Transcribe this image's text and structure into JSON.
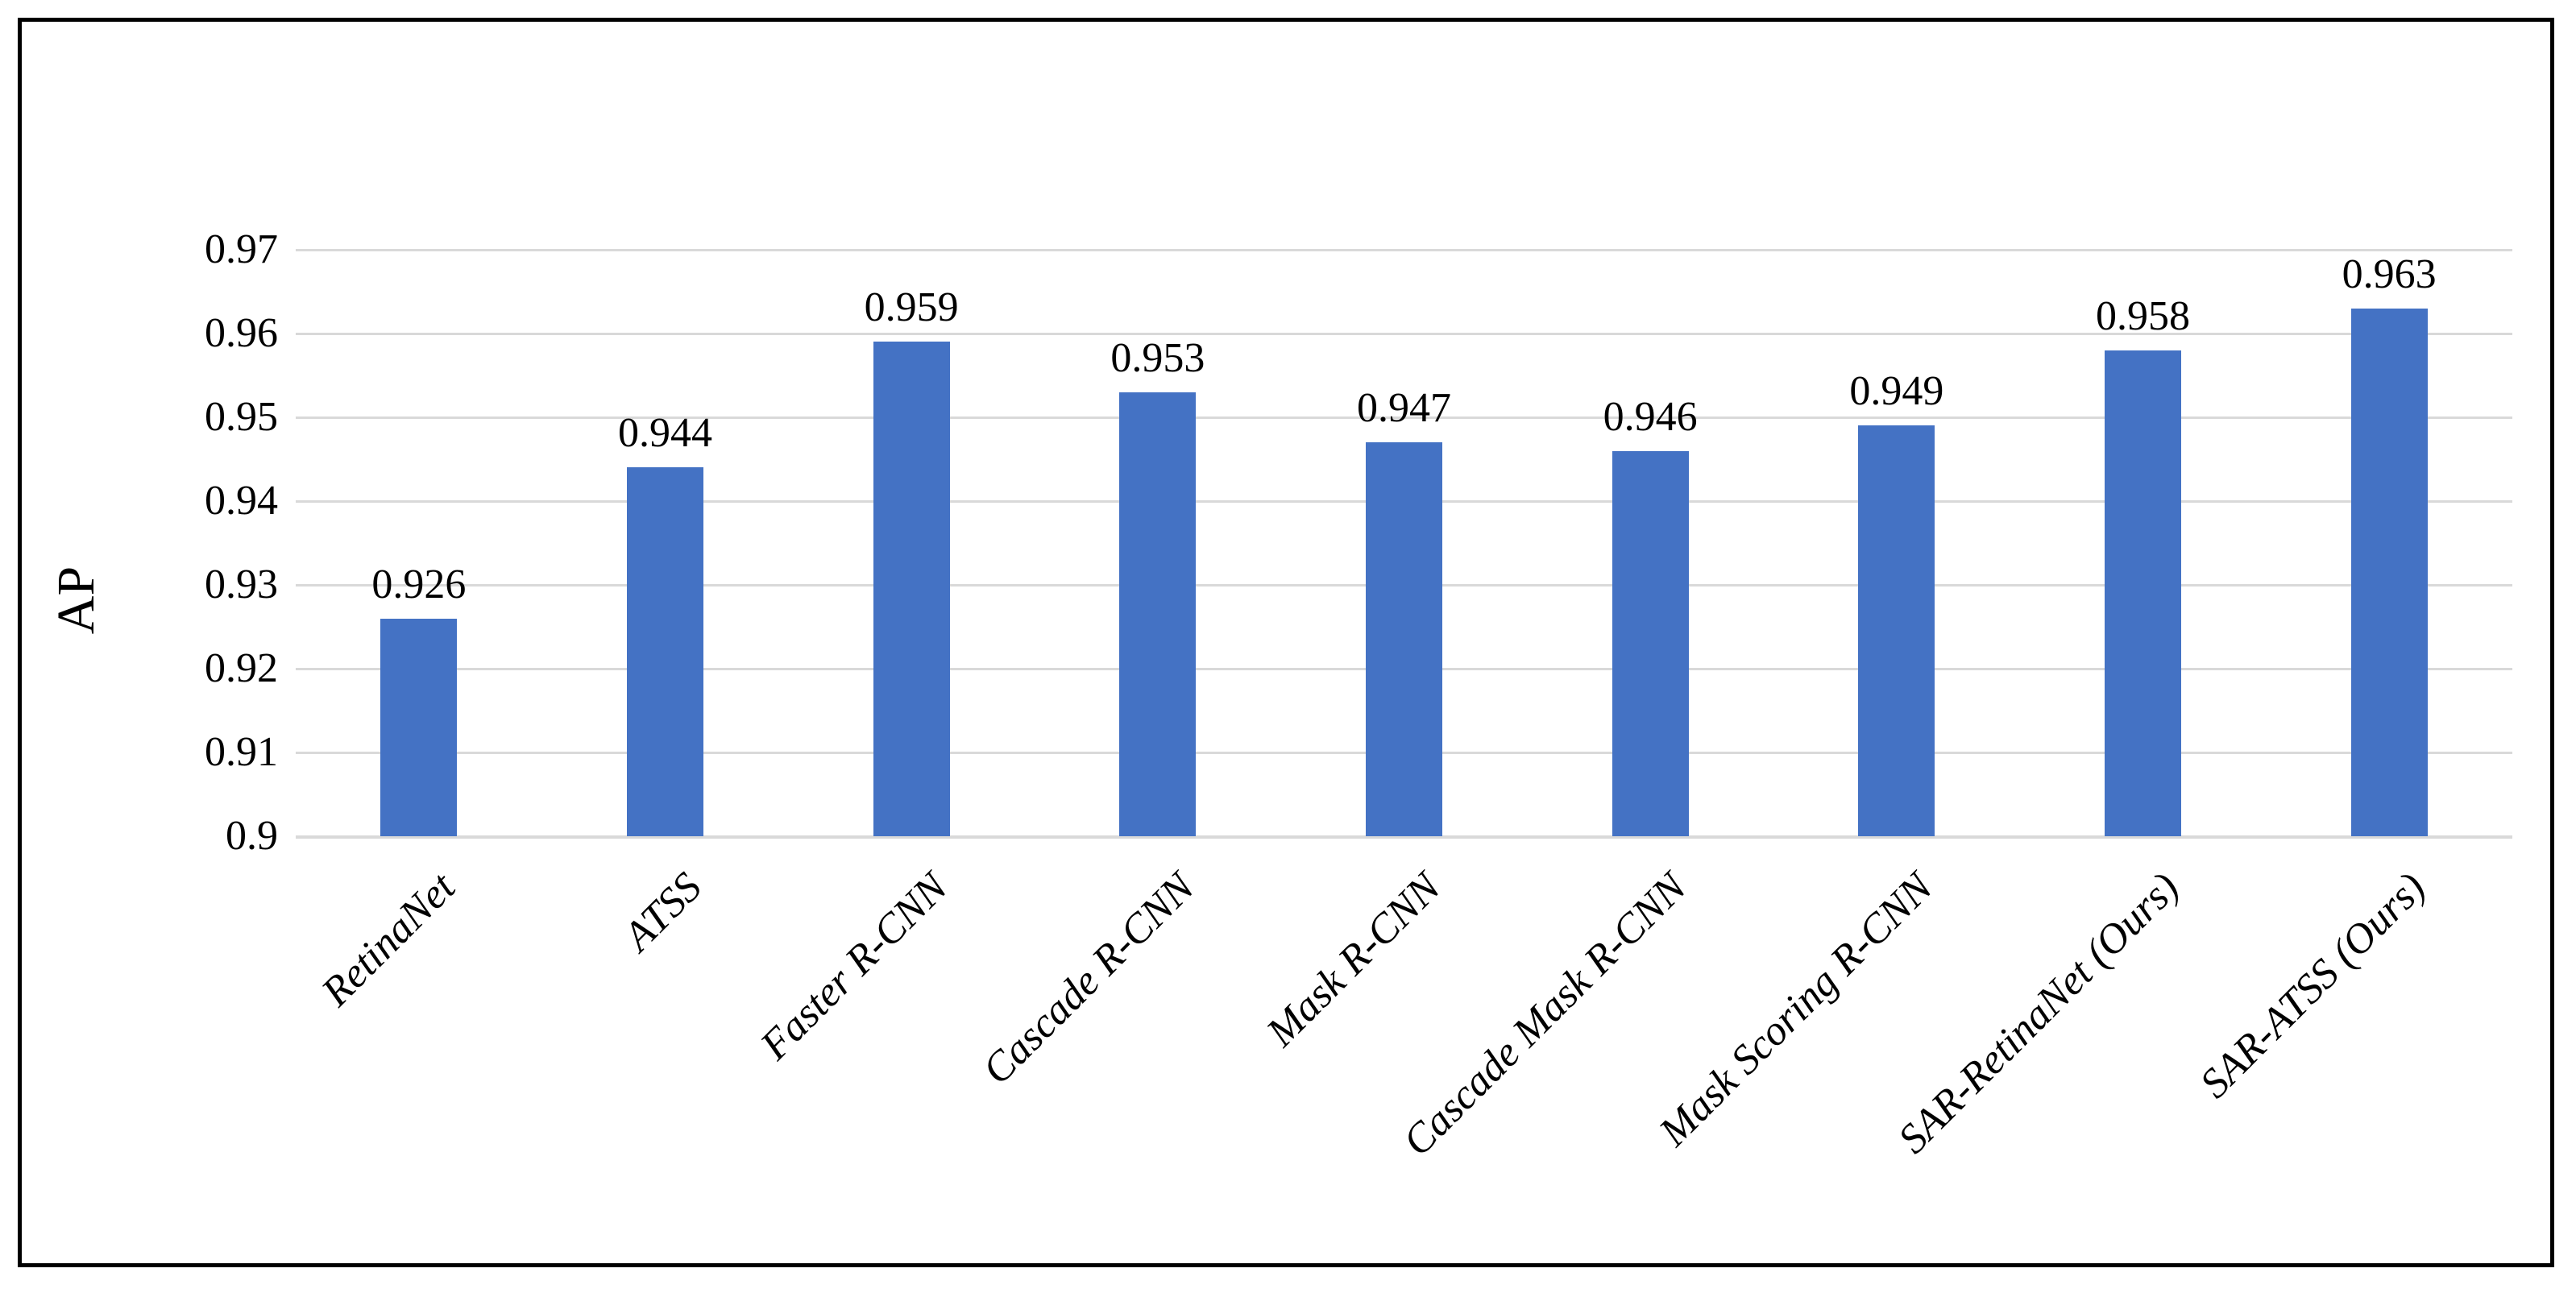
{
  "figure": {
    "background_color": "#FFFFFF",
    "border_color": "#000000"
  },
  "chart_data": {
    "type": "bar",
    "title": "",
    "xlabel": "",
    "ylabel": "AP",
    "categories": [
      "RetinaNet",
      "ATSS",
      "Faster R-CNN",
      "Cascade R-CNN",
      "Mask R-CNN",
      "Cascade Mask R-CNN",
      "Mask Scoring R-CNN",
      "SAR-RetinaNet (Ours)",
      "SAR-ATSS (Ours)"
    ],
    "values": [
      0.926,
      0.944,
      0.959,
      0.953,
      0.947,
      0.946,
      0.949,
      0.958,
      0.963
    ],
    "data_labels": [
      "0.926",
      "0.944",
      "0.959",
      "0.953",
      "0.947",
      "0.946",
      "0.949",
      "0.958",
      "0.963"
    ],
    "ylim": [
      0.9,
      0.97
    ],
    "yticks": [
      0.9,
      0.91,
      0.92,
      0.93,
      0.94,
      0.95,
      0.96,
      0.97
    ],
    "ytick_labels": [
      "0.9",
      "0.91",
      "0.92",
      "0.93",
      "0.94",
      "0.95",
      "0.96",
      "0.97"
    ],
    "grid": true,
    "legend_position": "none",
    "x_tick_rotation_deg": 45,
    "bar_color": "#4472C4",
    "gridline_color": "#D9D9D9",
    "axis_line_color": "#D9D9D9",
    "text_color": "#000000"
  }
}
